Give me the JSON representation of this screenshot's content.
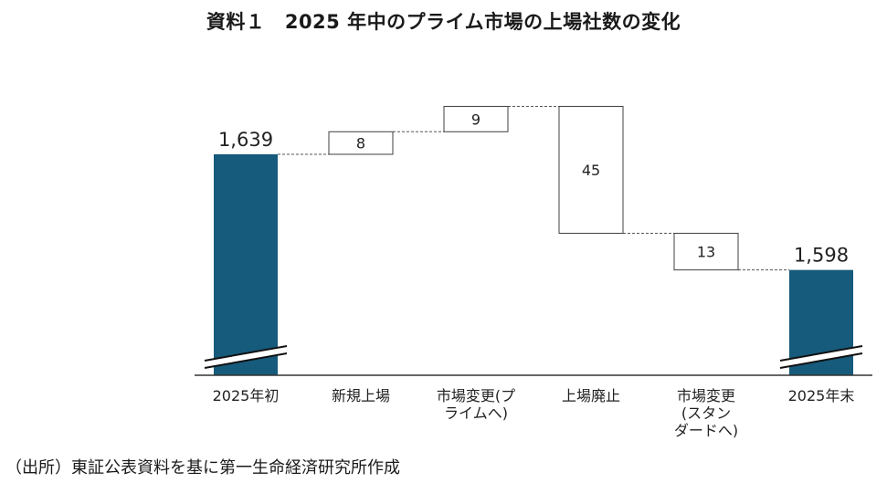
{
  "title": "資料１　2025 年中のプライム市場の上場社数の変化",
  "source": "（出所）東証公表資料を基に第一生命経済研究所作成",
  "chart_data": {
    "type": "bar",
    "subtype": "waterfall",
    "categories": [
      [
        "2025年初"
      ],
      [
        "新規上場"
      ],
      [
        "市場変更(プ",
        "ライムへ)"
      ],
      [
        "上場廃止"
      ],
      [
        "市場変更",
        "(スタン",
        "ダードへ)"
      ],
      [
        "2025年末"
      ]
    ],
    "values": [
      1639,
      8,
      9,
      -45,
      -13,
      1598
    ],
    "labels": [
      "1,639",
      "8",
      "9",
      "45",
      "13",
      "1,598"
    ],
    "kinds": [
      "total",
      "increase",
      "increase",
      "decrease",
      "decrease",
      "total"
    ],
    "axis_break": true,
    "colors": {
      "total": "#165a7c",
      "step_fill": "#ffffff",
      "step_stroke": "#404040",
      "connector": "#555555"
    }
  }
}
